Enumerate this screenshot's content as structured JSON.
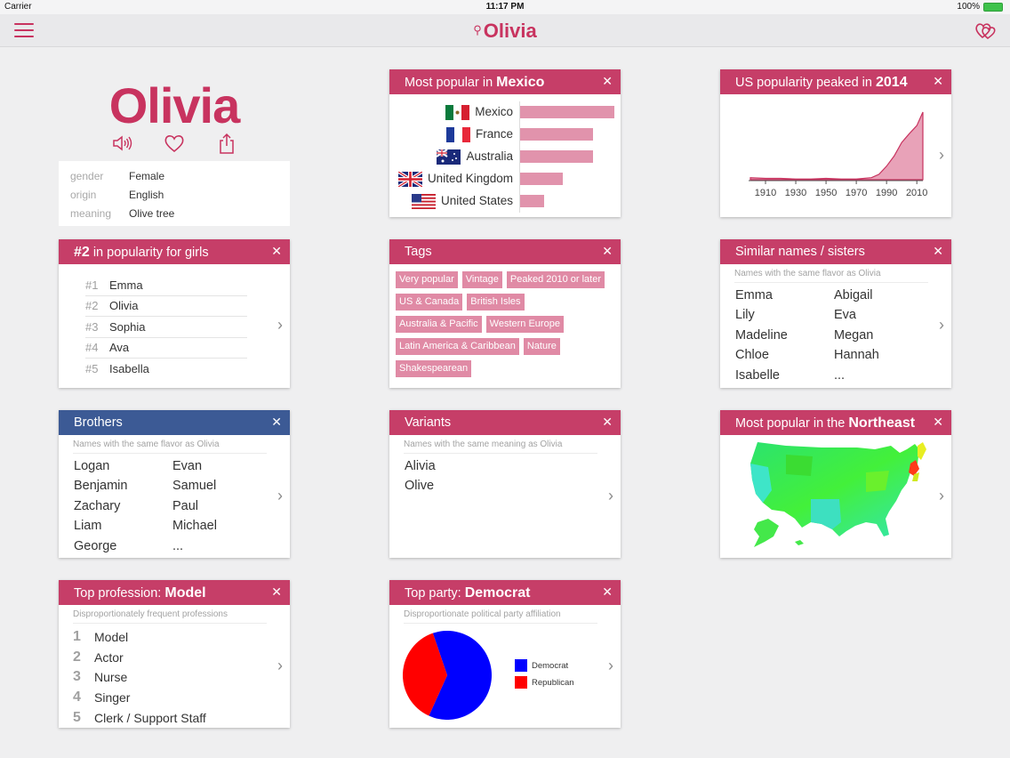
{
  "status": {
    "carrier": "Carrier",
    "time": "11:17 PM",
    "battery": "100%"
  },
  "nav": {
    "title": "Olivia"
  },
  "profile": {
    "name": "Olivia",
    "details": [
      {
        "key": "gender",
        "value": "Female"
      },
      {
        "key": "origin",
        "value": "English"
      },
      {
        "key": "meaning",
        "value": "Olive tree"
      }
    ]
  },
  "popular_country": {
    "title_prefix": "Most popular in ",
    "title_bold": "Mexico",
    "chart_data": {
      "type": "bar",
      "categories": [
        "Mexico",
        "France",
        "Australia",
        "United Kingdom",
        "United States"
      ],
      "values": [
        100,
        77,
        77,
        45,
        25
      ]
    }
  },
  "us_peak": {
    "title_prefix": "US popularity peaked in ",
    "title_bold": "2014",
    "chart_data": {
      "type": "area",
      "x": [
        1900,
        1910,
        1920,
        1930,
        1940,
        1950,
        1960,
        1970,
        1980,
        1985,
        1990,
        1995,
        2000,
        2005,
        2010,
        2014
      ],
      "values": [
        3,
        2,
        2,
        1,
        1,
        2,
        1,
        1,
        3,
        8,
        20,
        35,
        55,
        68,
        80,
        100
      ],
      "xticks": [
        "1910",
        "1930",
        "1950",
        "1970",
        "1990",
        "2010"
      ]
    }
  },
  "rank_card": {
    "title_bold": "#2",
    "title_rest": " in popularity for girls",
    "items": [
      {
        "n": "#1",
        "name": "Emma"
      },
      {
        "n": "#2",
        "name": "Olivia"
      },
      {
        "n": "#3",
        "name": "Sophia"
      },
      {
        "n": "#4",
        "name": "Ava"
      },
      {
        "n": "#5",
        "name": "Isabella"
      }
    ]
  },
  "tags_card": {
    "title": "Tags",
    "tags": [
      "Very popular",
      "Vintage",
      "Peaked 2010 or later",
      "US & Canada",
      "British Isles",
      "Australia & Pacific",
      "Western Europe",
      "Latin America & Caribbean",
      "Nature",
      "Shakespearean"
    ]
  },
  "sisters_card": {
    "title": "Similar names / sisters",
    "subtitle": "Names with the same flavor as Olivia",
    "names": [
      "Emma",
      "Abigail",
      "Lily",
      "Eva",
      "Madeline",
      "Megan",
      "Chloe",
      "Hannah",
      "Isabelle",
      "..."
    ]
  },
  "brothers_card": {
    "title": "Brothers",
    "subtitle": "Names with the same flavor as Olivia",
    "names": [
      "Logan",
      "Evan",
      "Benjamin",
      "Samuel",
      "Zachary",
      "Paul",
      "Liam",
      "Michael",
      "George",
      "..."
    ]
  },
  "variants_card": {
    "title": "Variants",
    "subtitle": "Names with the same meaning as Olivia",
    "names": [
      "Alivia",
      "Olive"
    ]
  },
  "region_card": {
    "title_prefix": "Most popular in the ",
    "title_bold": "Northeast"
  },
  "profession_card": {
    "title_prefix": "Top profession: ",
    "title_bold": "Model",
    "subtitle": "Disproportionately frequent professions",
    "items": [
      {
        "n": "1",
        "name": "Model"
      },
      {
        "n": "2",
        "name": "Actor"
      },
      {
        "n": "3",
        "name": "Nurse"
      },
      {
        "n": "4",
        "name": "Singer"
      },
      {
        "n": "5",
        "name": "Clerk / Support Staff"
      }
    ]
  },
  "party_card": {
    "title_prefix": "Top party: ",
    "title_bold": "Democrat",
    "subtitle": "Disproportionate political party affiliation",
    "chart_data": {
      "type": "pie",
      "categories": [
        "Democrat",
        "Republican"
      ],
      "values": [
        62,
        38
      ],
      "colors": [
        "#0000ff",
        "#ff0000"
      ]
    }
  },
  "colors": {
    "accent": "#c8335f",
    "header": "#c63e68",
    "brothers_header": "#3c5a95",
    "bar": "#e193ac",
    "tag": "#e08aa5"
  }
}
